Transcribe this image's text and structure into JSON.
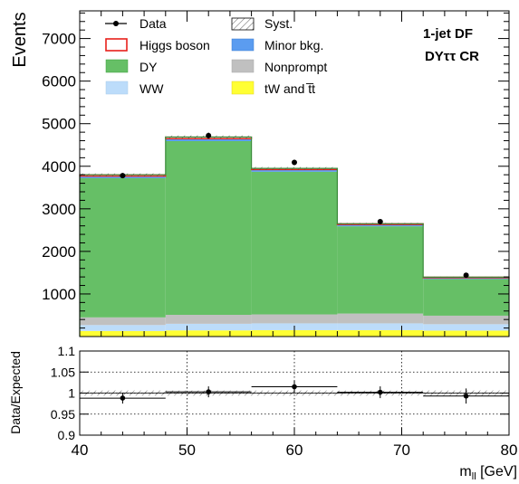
{
  "chart_data": [
    {
      "type": "bar",
      "stacked": true,
      "ylabel": "Events",
      "annotation_lines": [
        "1-jet DF",
        "DYττ CR"
      ],
      "x": [
        44,
        52,
        60,
        68,
        76
      ],
      "bin_edges": [
        40,
        48,
        56,
        64,
        72,
        80
      ],
      "xlim": [
        40,
        80
      ],
      "ylim": [
        0,
        7650
      ],
      "yticks": [
        1000,
        2000,
        3000,
        4000,
        5000,
        6000,
        7000
      ],
      "ytick_labels": [
        "1000",
        "2000",
        "3000",
        "4000",
        "5000",
        "6000",
        "7000"
      ],
      "legend_position": "top",
      "legend": [
        {
          "label": "Data",
          "marker": "point"
        },
        {
          "label": "Syst.",
          "marker": "hatch"
        },
        {
          "label": "Higgs boson",
          "marker": "outline",
          "color": "#e8201a"
        },
        {
          "label": "Minor bkg.",
          "marker": "box",
          "color": "#5b9cf0"
        },
        {
          "label": "DY",
          "marker": "box",
          "color": "#66bf66"
        },
        {
          "label": "Nonprompt",
          "marker": "box",
          "color": "#c0c0c0"
        },
        {
          "label": "WW",
          "marker": "box",
          "color": "#bcdcfa"
        },
        {
          "label": "tW and t̅t",
          "marker": "box",
          "color": "#ffff33"
        }
      ],
      "series": [
        {
          "name": "tW and t̅t",
          "color": "#ffff33",
          "values": [
            130,
            145,
            150,
            150,
            140
          ]
        },
        {
          "name": "WW",
          "color": "#bcdcfa",
          "values": [
            140,
            155,
            160,
            160,
            150
          ]
        },
        {
          "name": "Nonprompt",
          "color": "#c0c0c0",
          "values": [
            180,
            210,
            210,
            230,
            200
          ]
        },
        {
          "name": "DY",
          "color": "#66bf66",
          "values": [
            3270,
            4080,
            3350,
            2050,
            860
          ]
        },
        {
          "name": "Minor bkg.",
          "color": "#5b9cf0",
          "values": [
            45,
            55,
            50,
            40,
            30
          ]
        },
        {
          "name": "Higgs boson",
          "color": "#e8201a",
          "values": [
            35,
            40,
            30,
            20,
            15
          ]
        }
      ],
      "data_points": [
        {
          "x": 44,
          "y": 3780,
          "yerr": 60
        },
        {
          "x": 52,
          "y": 4720,
          "yerr": 70
        },
        {
          "x": 60,
          "y": 4090,
          "yerr": 65
        },
        {
          "x": 68,
          "y": 2700,
          "yerr": 52
        },
        {
          "x": 76,
          "y": 1440,
          "yerr": 38
        }
      ]
    },
    {
      "type": "scatter",
      "ylabel": "Data/Expected",
      "xlabel": "mₗₗ [GeV]",
      "xlabel_main": "m",
      "xlabel_sub": "ll",
      "xlabel_unit": " [GeV]",
      "xlim": [
        40,
        80
      ],
      "ylim": [
        0.9,
        1.1
      ],
      "xticks": [
        40,
        50,
        60,
        70,
        80
      ],
      "xtick_labels": [
        "40",
        "50",
        "60",
        "70",
        "80"
      ],
      "yticks": [
        0.9,
        0.95,
        1,
        1.05,
        1.1
      ],
      "ytick_labels": [
        "0.9",
        "0.95",
        "1",
        "1.05",
        "1.1"
      ],
      "grid": true,
      "points": [
        {
          "x": 44,
          "xerr": 4,
          "y": 0.988,
          "yerr": 0.013
        },
        {
          "x": 52,
          "xerr": 4,
          "y": 1.003,
          "yerr": 0.013
        },
        {
          "x": 60,
          "xerr": 4,
          "y": 1.015,
          "yerr": 0.014
        },
        {
          "x": 68,
          "xerr": 4,
          "y": 1.002,
          "yerr": 0.014
        },
        {
          "x": 76,
          "xerr": 4,
          "y": 0.993,
          "yerr": 0.018
        }
      ],
      "syst_band": 0.006
    }
  ]
}
